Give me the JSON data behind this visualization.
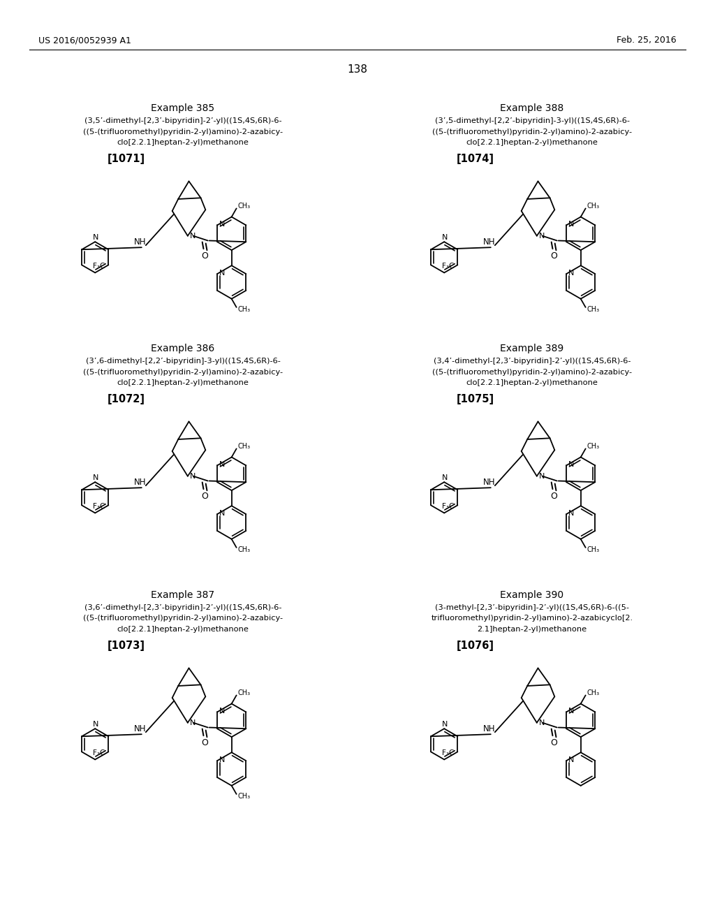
{
  "page_header_left": "US 2016/0052939 A1",
  "page_header_right": "Feb. 25, 2016",
  "page_number": "138",
  "examples": [
    {
      "id": "385",
      "label": "[1071]",
      "lines": [
        "(3,5’-dimethyl-[2,3’-bipyridin]-2’-yl)((1S,4S,6R)-6-",
        "((5-(trifluoromethyl)pyridin-2-yl)amino)-2-azabicy-",
        "clo[2.2.1]heptan-2-yl)methanone"
      ],
      "col": 0,
      "row": 0,
      "top_methyl": true,
      "bot_methyl": true
    },
    {
      "id": "388",
      "label": "[1074]",
      "lines": [
        "(3’,5-dimethyl-[2,2’-bipyridin]-3-yl)((1S,4S,6R)-6-",
        "((5-(trifluoromethyl)pyridin-2-yl)amino)-2-azabicy-",
        "clo[2.2.1]heptan-2-yl)methanone"
      ],
      "col": 1,
      "row": 0,
      "top_methyl": true,
      "bot_methyl": true
    },
    {
      "id": "386",
      "label": "[1072]",
      "lines": [
        "(3’,6-dimethyl-[2,2’-bipyridin]-3-yl)((1S,4S,6R)-6-",
        "((5-(trifluoromethyl)pyridin-2-yl)amino)-2-azabicy-",
        "clo[2.2.1]heptan-2-yl)methanone"
      ],
      "col": 0,
      "row": 1,
      "top_methyl": true,
      "bot_methyl": true
    },
    {
      "id": "389",
      "label": "[1075]",
      "lines": [
        "(3,4’-dimethyl-[2,3’-bipyridin]-2’-yl)((1S,4S,6R)-6-",
        "((5-(trifluoromethyl)pyridin-2-yl)amino)-2-azabicy-",
        "clo[2.2.1]heptan-2-yl)methanone"
      ],
      "col": 1,
      "row": 1,
      "top_methyl": true,
      "bot_methyl": true
    },
    {
      "id": "387",
      "label": "[1073]",
      "lines": [
        "(3,6’-dimethyl-[2,3’-bipyridin]-2’-yl)((1S,4S,6R)-6-",
        "((5-(trifluoromethyl)pyridin-2-yl)amino)-2-azabicy-",
        "clo[2.2.1]heptan-2-yl)methanone"
      ],
      "col": 0,
      "row": 2,
      "top_methyl": true,
      "bot_methyl": true
    },
    {
      "id": "390",
      "label": "[1076]",
      "lines": [
        "(3-methyl-[2,3’-bipyridin]-2’-yl)((1S,4S,6R)-6-((5-",
        "trifluoromethyl)pyridin-2-yl)amino)-2-azabicyclo[2.",
        "2.1]heptan-2-yl)methanone"
      ],
      "col": 1,
      "row": 2,
      "top_methyl": true,
      "bot_methyl": false
    }
  ]
}
